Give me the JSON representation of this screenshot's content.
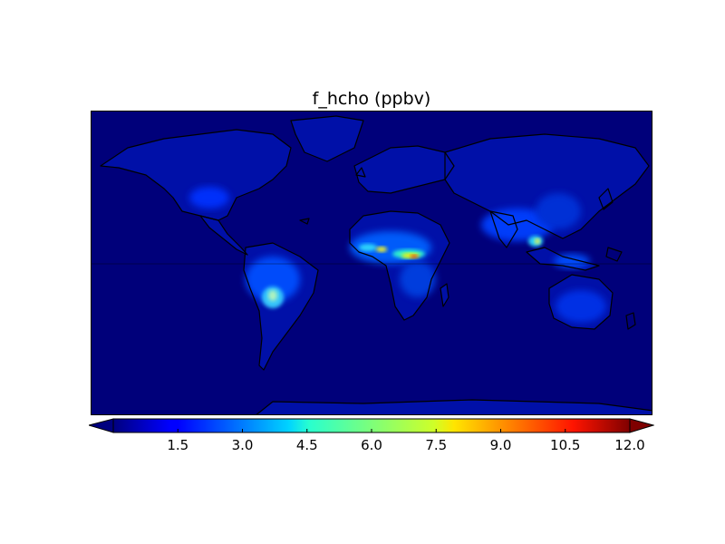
{
  "title": "f_hcho (ppbv)",
  "colorbar": {
    "min": 0,
    "max": 12.0,
    "extend": "both",
    "colormap": "jet",
    "ticks": [
      "1.5",
      "3.0",
      "4.5",
      "6.0",
      "7.5",
      "9.0",
      "10.5",
      "12.0"
    ],
    "tick_values": [
      1.5,
      3.0,
      4.5,
      6.0,
      7.5,
      9.0,
      10.5,
      12.0
    ]
  },
  "map": {
    "projection": "cylindrical",
    "background_color": "#00007a",
    "equator_line": true
  }
}
